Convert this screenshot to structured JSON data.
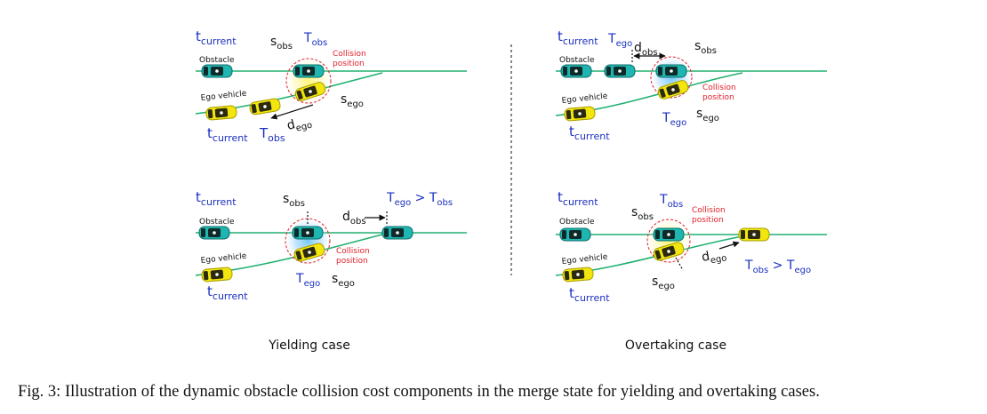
{
  "panels": {
    "yield_top": {
      "t_current_obs": "t",
      "t_current_obs_sub": "current",
      "obstacle": "Obstacle",
      "s_obs": "s",
      "s_obs_sub": "obs",
      "T_obs": "T",
      "T_obs_sub": "obs",
      "collision_1": "Collision",
      "collision_2": "position",
      "ego_vehicle": "Ego vehicle",
      "s_ego": "s",
      "s_ego_sub": "ego",
      "d_ego": "d",
      "d_ego_sub": "ego",
      "t_current_ego": "t",
      "t_current_ego_sub": "current",
      "T_obs_ego": "T",
      "T_obs_ego_sub": "obs"
    },
    "yield_bottom": {
      "t_current_obs": "t",
      "t_current_obs_sub": "current",
      "obstacle": "Obstacle",
      "s_obs": "s",
      "s_obs_sub": "obs",
      "d_obs": "d",
      "d_obs_sub": "obs",
      "T_ego": "T",
      "T_ego_sub": "ego",
      "gt": " > ",
      "T_obs": "T",
      "T_obs_sub": "obs",
      "collision_1": "Collision",
      "collision_2": "position",
      "ego_vehicle": "Ego vehicle",
      "t_current_ego": "t",
      "t_current_ego_sub": "current",
      "T_ego_lbl": "T",
      "T_ego_lbl_sub": "ego",
      "s_ego": "s",
      "s_ego_sub": "ego"
    },
    "over_top": {
      "t_current_obs": "t",
      "t_current_obs_sub": "current",
      "T_ego": "T",
      "T_ego_sub": "ego",
      "d_obs": "d",
      "d_obs_sub": "obs",
      "s_obs": "s",
      "s_obs_sub": "obs",
      "obstacle": "Obstacle",
      "collision_1": "Collision",
      "collision_2": "position",
      "ego_vehicle": "Ego vehicle",
      "T_ego_lbl": "T",
      "T_ego_lbl_sub": "ego",
      "s_ego": "s",
      "s_ego_sub": "ego",
      "t_current_ego": "t",
      "t_current_ego_sub": "current"
    },
    "over_bottom": {
      "t_current_obs": "t",
      "t_current_obs_sub": "current",
      "T_obs": "T",
      "T_obs_sub": "obs",
      "s_obs": "s",
      "s_obs_sub": "obs",
      "collision_1": "Collision",
      "collision_2": "position",
      "obstacle": "Obstacle",
      "ego_vehicle": "Ego vehicle",
      "d_ego": "d",
      "d_ego_sub": "ego",
      "T_obs_c": "T",
      "T_obs_c_sub": "obs",
      "gt": " > ",
      "T_ego_c": "T",
      "T_ego_c_sub": "ego",
      "s_ego": "s",
      "s_ego_sub": "ego",
      "t_current_ego": "t",
      "t_current_ego_sub": "current"
    }
  },
  "case_labels": {
    "yielding": "Yielding case",
    "overtaking": "Overtaking case"
  },
  "caption": "Fig. 3: Illustration of the dynamic obstacle collision cost components in the merge state for yielding and overtaking cases.",
  "colors": {
    "road": "#20b070",
    "obstacle_car": "#1fb5b0",
    "ego_car": "#f2e60e",
    "label_blue": "#1a2fbf",
    "collision_red": "#e0202a"
  }
}
